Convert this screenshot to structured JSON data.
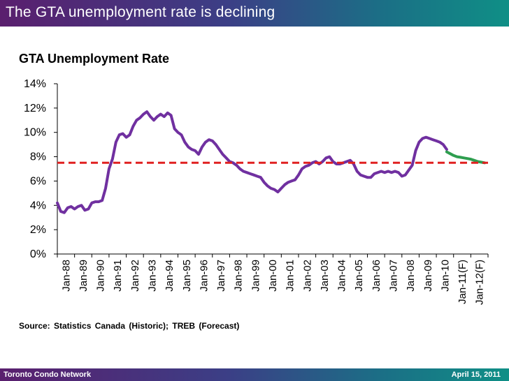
{
  "slide": {
    "title": "The GTA unemployment rate is declining",
    "footer_left": "Toronto Condo Network",
    "footer_right": "April 15, 2011",
    "source": "Source: Statistics Canada (Historic); TREB (Forecast)"
  },
  "colors": {
    "historic": "#7030a0",
    "forecast": "#2e9e4f",
    "average": "#e02020",
    "axis": "#000000"
  },
  "chart_data": {
    "type": "line",
    "title": "GTA Unemployment Rate",
    "xlabel": "",
    "ylabel": "",
    "ylim": [
      0,
      14
    ],
    "yticks": [
      "0%",
      "2%",
      "4%",
      "6%",
      "8%",
      "10%",
      "12%",
      "14%"
    ],
    "categories": [
      "Jan-88",
      "Jan-89",
      "Jan-90",
      "Jan-91",
      "Jan-92",
      "Jan-93",
      "Jan-94",
      "Jan-95",
      "Jan-96",
      "Jan-97",
      "Jan-98",
      "Jan-99",
      "Jan-00",
      "Jan-01",
      "Jan-02",
      "Jan-03",
      "Jan-04",
      "Jan-05",
      "Jan-06",
      "Jan-07",
      "Jan-08",
      "Jan-09",
      "Jan-10",
      "Jan-11(F)",
      "Jan-12(F)"
    ],
    "grid": false,
    "legend": "none",
    "series": [
      {
        "role": "historic",
        "points": [
          [
            1988.0,
            4.2
          ],
          [
            1988.2,
            3.5
          ],
          [
            1988.4,
            3.4
          ],
          [
            1988.6,
            3.8
          ],
          [
            1988.8,
            3.9
          ],
          [
            1989.0,
            3.7
          ],
          [
            1989.2,
            3.9
          ],
          [
            1989.4,
            4.0
          ],
          [
            1989.6,
            3.6
          ],
          [
            1989.8,
            3.7
          ],
          [
            1990.0,
            4.2
          ],
          [
            1990.2,
            4.3
          ],
          [
            1990.4,
            4.3
          ],
          [
            1990.6,
            4.4
          ],
          [
            1990.8,
            5.4
          ],
          [
            1991.0,
            7.0
          ],
          [
            1991.2,
            7.8
          ],
          [
            1991.4,
            9.2
          ],
          [
            1991.6,
            9.8
          ],
          [
            1991.8,
            9.9
          ],
          [
            1992.0,
            9.6
          ],
          [
            1992.2,
            9.8
          ],
          [
            1992.4,
            10.5
          ],
          [
            1992.6,
            11.0
          ],
          [
            1992.8,
            11.2
          ],
          [
            1993.0,
            11.5
          ],
          [
            1993.2,
            11.7
          ],
          [
            1993.4,
            11.3
          ],
          [
            1993.6,
            11.0
          ],
          [
            1993.8,
            11.3
          ],
          [
            1994.0,
            11.5
          ],
          [
            1994.2,
            11.3
          ],
          [
            1994.4,
            11.6
          ],
          [
            1994.6,
            11.4
          ],
          [
            1994.8,
            10.3
          ],
          [
            1995.0,
            10.0
          ],
          [
            1995.2,
            9.8
          ],
          [
            1995.4,
            9.2
          ],
          [
            1995.6,
            8.8
          ],
          [
            1995.8,
            8.6
          ],
          [
            1996.0,
            8.5
          ],
          [
            1996.2,
            8.2
          ],
          [
            1996.4,
            8.8
          ],
          [
            1996.6,
            9.2
          ],
          [
            1996.8,
            9.4
          ],
          [
            1997.0,
            9.3
          ],
          [
            1997.2,
            9.0
          ],
          [
            1997.4,
            8.6
          ],
          [
            1997.6,
            8.2
          ],
          [
            1997.8,
            7.9
          ],
          [
            1998.0,
            7.6
          ],
          [
            1998.2,
            7.5
          ],
          [
            1998.4,
            7.3
          ],
          [
            1998.6,
            7.0
          ],
          [
            1998.8,
            6.8
          ],
          [
            1999.0,
            6.7
          ],
          [
            1999.2,
            6.6
          ],
          [
            1999.4,
            6.5
          ],
          [
            1999.6,
            6.4
          ],
          [
            1999.8,
            6.3
          ],
          [
            2000.0,
            5.9
          ],
          [
            2000.2,
            5.6
          ],
          [
            2000.4,
            5.4
          ],
          [
            2000.6,
            5.3
          ],
          [
            2000.8,
            5.1
          ],
          [
            2001.0,
            5.4
          ],
          [
            2001.2,
            5.7
          ],
          [
            2001.4,
            5.9
          ],
          [
            2001.6,
            6.0
          ],
          [
            2001.8,
            6.1
          ],
          [
            2002.0,
            6.5
          ],
          [
            2002.2,
            7.0
          ],
          [
            2002.4,
            7.2
          ],
          [
            2002.6,
            7.3
          ],
          [
            2002.8,
            7.5
          ],
          [
            2003.0,
            7.6
          ],
          [
            2003.2,
            7.4
          ],
          [
            2003.4,
            7.6
          ],
          [
            2003.6,
            7.9
          ],
          [
            2003.8,
            8.0
          ],
          [
            2004.0,
            7.6
          ],
          [
            2004.2,
            7.4
          ],
          [
            2004.4,
            7.4
          ],
          [
            2004.6,
            7.5
          ],
          [
            2004.8,
            7.6
          ],
          [
            2005.0,
            7.7
          ],
          [
            2005.2,
            7.4
          ],
          [
            2005.4,
            6.8
          ],
          [
            2005.6,
            6.5
          ],
          [
            2005.8,
            6.4
          ],
          [
            2006.0,
            6.3
          ],
          [
            2006.2,
            6.3
          ],
          [
            2006.4,
            6.6
          ],
          [
            2006.6,
            6.7
          ],
          [
            2006.8,
            6.8
          ],
          [
            2007.0,
            6.7
          ],
          [
            2007.2,
            6.8
          ],
          [
            2007.4,
            6.7
          ],
          [
            2007.6,
            6.8
          ],
          [
            2007.8,
            6.7
          ],
          [
            2008.0,
            6.4
          ],
          [
            2008.2,
            6.5
          ],
          [
            2008.4,
            6.9
          ],
          [
            2008.6,
            7.3
          ],
          [
            2008.8,
            8.5
          ],
          [
            2009.0,
            9.2
          ],
          [
            2009.2,
            9.5
          ],
          [
            2009.4,
            9.6
          ],
          [
            2009.6,
            9.5
          ],
          [
            2009.8,
            9.4
          ],
          [
            2010.0,
            9.3
          ],
          [
            2010.2,
            9.2
          ],
          [
            2010.4,
            9.0
          ],
          [
            2010.6,
            8.6
          ]
        ]
      },
      {
        "role": "forecast",
        "points": [
          [
            2010.6,
            8.4
          ],
          [
            2010.8,
            8.25
          ],
          [
            2011.0,
            8.1
          ],
          [
            2011.2,
            8.0
          ],
          [
            2011.4,
            7.95
          ],
          [
            2011.6,
            7.9
          ],
          [
            2011.8,
            7.85
          ],
          [
            2012.0,
            7.8
          ],
          [
            2012.2,
            7.7
          ],
          [
            2012.4,
            7.6
          ],
          [
            2012.6,
            7.55
          ],
          [
            2012.8,
            7.5
          ]
        ]
      }
    ],
    "average_line": 7.5
  }
}
